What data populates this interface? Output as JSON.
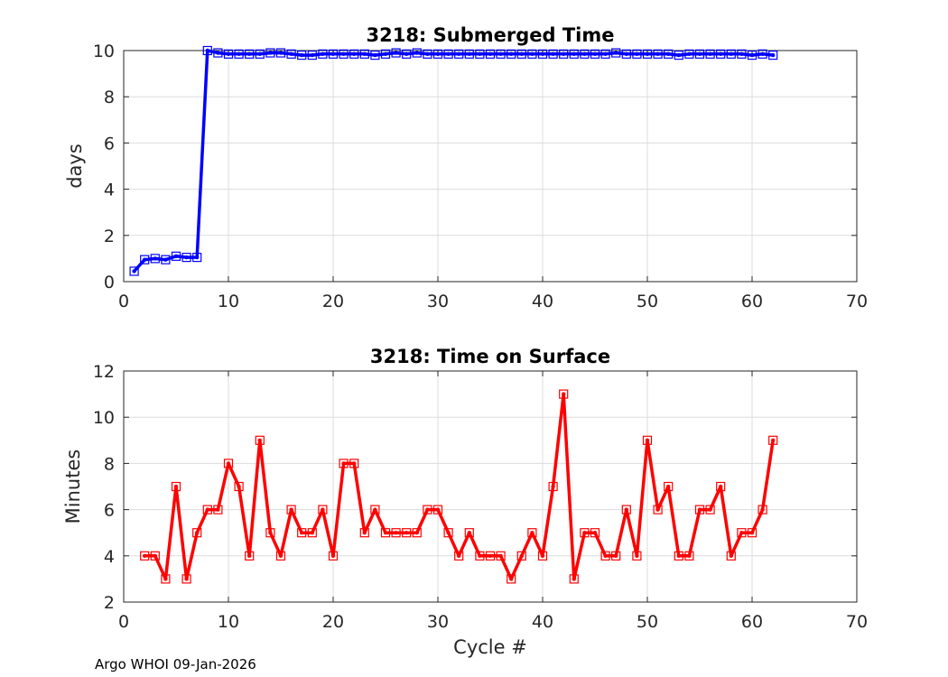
{
  "chart_data": [
    {
      "type": "line",
      "title": "3218: Submerged Time",
      "xlabel": "",
      "ylabel": "days",
      "xlim": [
        0,
        70
      ],
      "ylim": [
        0,
        10
      ],
      "xticks": [
        "0",
        "10",
        "20",
        "30",
        "40",
        "50",
        "60",
        "70"
      ],
      "yticks": [
        "0",
        "2",
        "4",
        "6",
        "8",
        "10"
      ],
      "grid": true,
      "color": "#0000ff",
      "marker": "square",
      "series": [
        {
          "name": "Submerged Time",
          "x": [
            1,
            2,
            3,
            4,
            5,
            6,
            7,
            8,
            9,
            10,
            11,
            12,
            13,
            14,
            15,
            16,
            17,
            18,
            19,
            20,
            21,
            22,
            23,
            24,
            25,
            26,
            27,
            28,
            29,
            30,
            31,
            32,
            33,
            34,
            35,
            36,
            37,
            38,
            39,
            40,
            41,
            42,
            43,
            44,
            45,
            46,
            47,
            48,
            49,
            50,
            51,
            52,
            53,
            54,
            55,
            56,
            57,
            58,
            59,
            60,
            61,
            62
          ],
          "values": [
            0.45,
            0.95,
            1.0,
            0.95,
            1.1,
            1.05,
            1.05,
            10.0,
            9.9,
            9.85,
            9.85,
            9.85,
            9.85,
            9.9,
            9.9,
            9.85,
            9.8,
            9.8,
            9.85,
            9.85,
            9.85,
            9.85,
            9.85,
            9.8,
            9.85,
            9.9,
            9.85,
            9.9,
            9.85,
            9.85,
            9.85,
            9.85,
            9.85,
            9.85,
            9.85,
            9.85,
            9.85,
            9.85,
            9.85,
            9.85,
            9.85,
            9.85,
            9.85,
            9.85,
            9.85,
            9.85,
            9.9,
            9.85,
            9.85,
            9.85,
            9.85,
            9.85,
            9.8,
            9.85,
            9.85,
            9.85,
            9.85,
            9.85,
            9.85,
            9.8,
            9.85,
            9.8
          ]
        }
      ]
    },
    {
      "type": "line",
      "title": "3218: Time on Surface",
      "xlabel": "Cycle #",
      "ylabel": "Minutes",
      "xlim": [
        0,
        70
      ],
      "ylim": [
        2,
        12
      ],
      "xticks": [
        "0",
        "10",
        "20",
        "30",
        "40",
        "50",
        "60",
        "70"
      ],
      "yticks": [
        "2",
        "4",
        "6",
        "8",
        "10",
        "12"
      ],
      "grid": true,
      "color": "#ff0000",
      "marker": "square",
      "series": [
        {
          "name": "Time on Surface",
          "x": [
            2,
            3,
            4,
            5,
            6,
            7,
            8,
            9,
            10,
            11,
            12,
            13,
            14,
            15,
            16,
            17,
            18,
            19,
            20,
            21,
            22,
            23,
            24,
            25,
            26,
            27,
            28,
            29,
            30,
            31,
            32,
            33,
            34,
            35,
            36,
            37,
            38,
            39,
            40,
            41,
            42,
            43,
            44,
            45,
            46,
            47,
            48,
            49,
            50,
            51,
            52,
            53,
            54,
            55,
            56,
            57,
            58,
            59,
            60,
            61,
            62
          ],
          "values": [
            4,
            4,
            3,
            7,
            3,
            5,
            6,
            6,
            8,
            7,
            4,
            9,
            5,
            4,
            6,
            5,
            5,
            6,
            4,
            8,
            8,
            5,
            6,
            5,
            5,
            5,
            5,
            6,
            6,
            5,
            4,
            5,
            4,
            4,
            4,
            3,
            4,
            5,
            4,
            7,
            11,
            3,
            5,
            5,
            4,
            4,
            6,
            4,
            9,
            6,
            7,
            4,
            4,
            6,
            6,
            7,
            4,
            5,
            5,
            6,
            9
          ]
        }
      ]
    }
  ],
  "footer": "Argo WHOI 09-Jan-2026"
}
